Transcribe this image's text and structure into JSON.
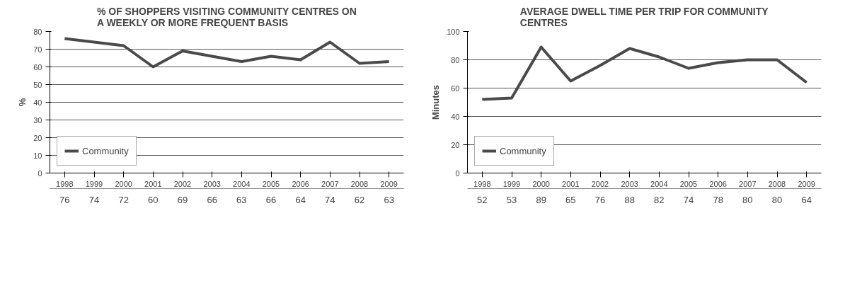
{
  "chart_data": [
    {
      "type": "line",
      "title": "% OF SHOPPERS VISITING COMMUNITY CENTRES ON A WEEKLY OR MORE FREQUENT BASIS",
      "ylabel": "%",
      "categories": [
        "1998",
        "1999",
        "2000",
        "2001",
        "2002",
        "2003",
        "2004",
        "2005",
        "2006",
        "2007",
        "2008",
        "2009"
      ],
      "series": [
        {
          "name": "Community",
          "color": "#4a4a4a",
          "values": [
            76,
            74,
            72,
            60,
            69,
            66,
            63,
            66,
            64,
            74,
            62,
            63
          ]
        }
      ],
      "ylim": [
        0,
        80
      ],
      "yticks": [
        0,
        10,
        20,
        30,
        40,
        50,
        60,
        70,
        80
      ],
      "grid": "y",
      "legend": "bottom left",
      "data_labels": true
    },
    {
      "type": "line",
      "title": "AVERAGE DWELL TIME PER TRIP FOR COMMUNITY CENTRES",
      "ylabel": "Minutes",
      "categories": [
        "1998",
        "1999",
        "2000",
        "2001",
        "2002",
        "2003",
        "2004",
        "2005",
        "2006",
        "2007",
        "2008",
        "2009"
      ],
      "series": [
        {
          "name": "Community",
          "color": "#4a4a4a",
          "values": [
            52,
            53,
            89,
            65,
            76,
            88,
            82,
            74,
            78,
            80,
            80,
            64
          ]
        }
      ],
      "ylim": [
        0,
        100
      ],
      "yticks": [
        0,
        20,
        40,
        60,
        80,
        100
      ],
      "grid": "y",
      "legend": "bottom left",
      "data_labels": true
    }
  ]
}
